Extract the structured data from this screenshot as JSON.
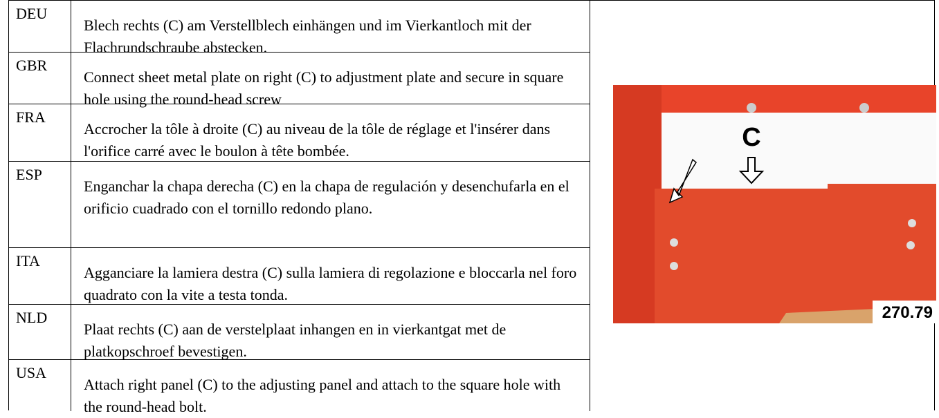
{
  "table": {
    "rows": [
      [
        "DEU",
        "Blech rechts (C) am Verstellblech einhängen und im Vierkantloch mit der Flachrundschraube abstecken."
      ],
      [
        "GBR",
        "Connect sheet metal plate on right (C) to adjustment plate and secure in square hole using the round-head screw"
      ],
      [
        "FRA",
        "Accrocher la tôle à droite (C) au niveau de la tôle de réglage et l'insérer dans l'orifice carré avec le boulon à tête bombée."
      ],
      [
        "ESP",
        "Enganchar la chapa derecha (C) en la chapa de regulación y desenchufarla en el orificio cuadrado con el tornillo redondo plano."
      ],
      [
        "ITA",
        "Agganciare la lamiera destra (C) sulla lamiera di regolazione e bloccarla nel foro quadrato con la vite a testa tonda."
      ],
      [
        "NLD",
        "Plaat rechts (C) aan de verstelplaat inhangen en in vierkantgat met de platkopschroef bevestigen."
      ],
      [
        "USA",
        "Attach right panel (C) to the adjusting panel and attach to the square hole with the round-head bolt."
      ]
    ]
  },
  "image": {
    "label": "C",
    "caption": "270.79"
  }
}
